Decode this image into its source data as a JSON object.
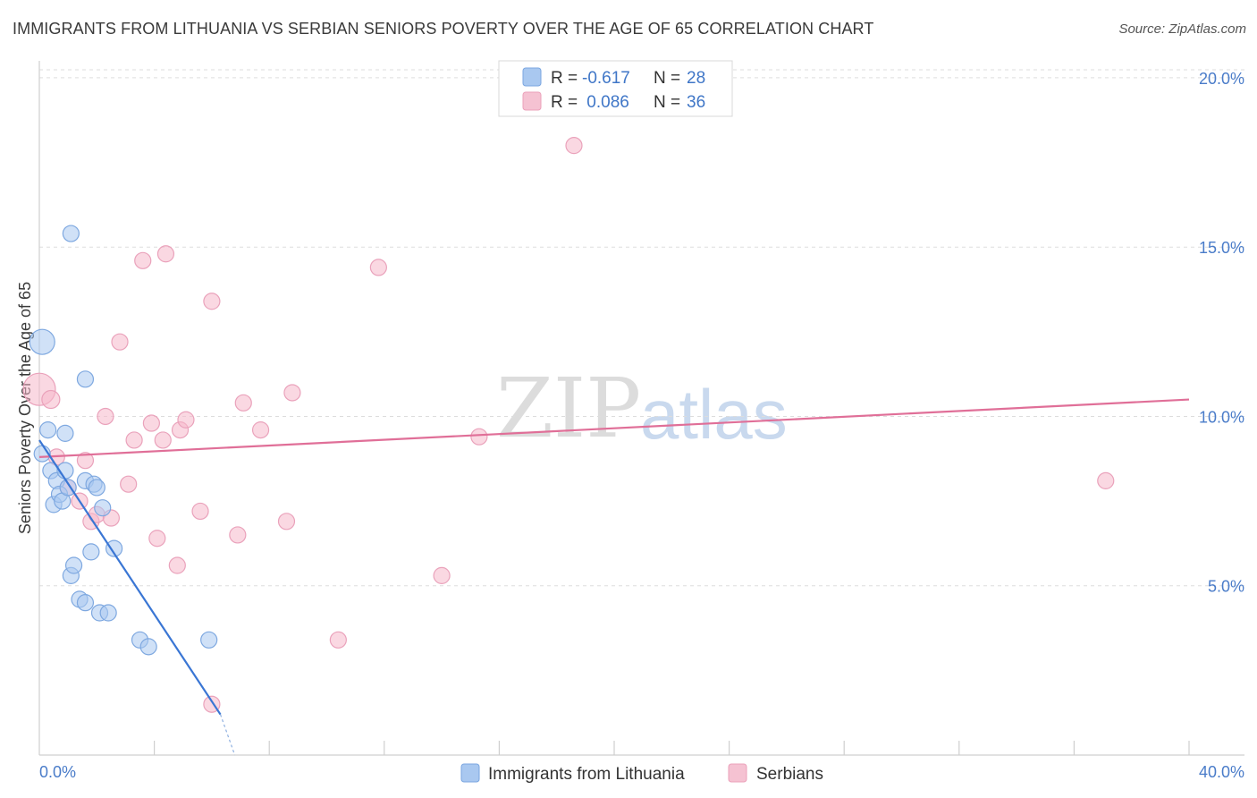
{
  "title": "IMMIGRANTS FROM LITHUANIA VS SERBIAN SENIORS POVERTY OVER THE AGE OF 65 CORRELATION CHART",
  "source": "Source: ZipAtlas.com",
  "watermark": {
    "zip": "ZIP",
    "atlas": "atlas"
  },
  "colors": {
    "blue": "#3a76d4",
    "blue_fill": "#a9c8f0",
    "pink": "#e06f98",
    "pink_fill": "#f5b8cb",
    "axis_text": "#4a7cc9"
  },
  "legend": {
    "rows": [
      {
        "r_label": "R =",
        "r_value": "-0.617",
        "n_label": "N =",
        "n_value": "28"
      },
      {
        "r_label": "R =",
        "r_value": " 0.086",
        "n_label": "N =",
        "n_value": "36"
      }
    ]
  },
  "bottom_legend": [
    "Immigrants from Lithuania",
    "Serbians"
  ],
  "chart_data": {
    "type": "scatter",
    "title": "IMMIGRANTS FROM LITHUANIA VS SERBIAN SENIORS POVERTY OVER THE AGE OF 65 CORRELATION CHART",
    "xlabel": "",
    "ylabel": "Seniors Poverty Over the Age of 65",
    "xlim": [
      0,
      40
    ],
    "ylim": [
      0,
      20.5
    ],
    "x_tick_labels": [
      "0.0%",
      "40.0%"
    ],
    "y_ticks": [
      5,
      10,
      15,
      20
    ],
    "y_tick_labels": [
      "5.0%",
      "10.0%",
      "15.0%",
      "20.0%"
    ],
    "series": [
      {
        "name": "Immigrants from Lithuania",
        "R": -0.617,
        "N": 28,
        "points": [
          [
            0.1,
            12.2,
            14
          ],
          [
            0.1,
            8.9,
            9
          ],
          [
            0.3,
            9.6,
            9
          ],
          [
            0.4,
            8.4,
            9
          ],
          [
            0.5,
            7.4,
            9
          ],
          [
            0.6,
            8.1,
            9
          ],
          [
            0.7,
            7.7,
            9
          ],
          [
            0.8,
            7.5,
            9
          ],
          [
            0.9,
            8.4,
            9
          ],
          [
            0.9,
            9.5,
            9
          ],
          [
            1.0,
            7.9,
            9
          ],
          [
            1.1,
            5.3,
            9
          ],
          [
            1.2,
            5.6,
            9
          ],
          [
            1.1,
            15.4,
            9
          ],
          [
            1.4,
            4.6,
            9
          ],
          [
            1.6,
            4.5,
            9
          ],
          [
            1.6,
            11.1,
            9
          ],
          [
            1.6,
            8.1,
            9
          ],
          [
            1.8,
            6.0,
            9
          ],
          [
            1.9,
            8.0,
            9
          ],
          [
            2.1,
            4.2,
            9
          ],
          [
            2.2,
            7.3,
            9
          ],
          [
            2.4,
            4.2,
            9
          ],
          [
            2.6,
            6.1,
            9
          ],
          [
            3.5,
            3.4,
            9
          ],
          [
            3.8,
            3.2,
            9
          ],
          [
            5.9,
            3.4,
            9
          ],
          [
            2.0,
            7.9,
            9
          ]
        ],
        "trend": {
          "x": [
            0,
            6.3
          ],
          "y": [
            9.3,
            1.2
          ],
          "dashed_x": [
            6.3,
            6.8
          ],
          "dashed_y": [
            1.2,
            0
          ]
        }
      },
      {
        "name": "Serbians",
        "R": 0.086,
        "N": 36,
        "points": [
          [
            0.0,
            10.8,
            18
          ],
          [
            0.4,
            10.5,
            10
          ],
          [
            0.6,
            8.8,
            9
          ],
          [
            1.0,
            7.9,
            9
          ],
          [
            1.4,
            7.5,
            9
          ],
          [
            1.6,
            8.7,
            9
          ],
          [
            1.8,
            6.9,
            9
          ],
          [
            2.0,
            7.1,
            9
          ],
          [
            2.3,
            10.0,
            9
          ],
          [
            2.5,
            7.0,
            9
          ],
          [
            2.8,
            12.2,
            9
          ],
          [
            3.1,
            8.0,
            9
          ],
          [
            3.3,
            9.3,
            9
          ],
          [
            3.6,
            14.6,
            9
          ],
          [
            3.9,
            9.8,
            9
          ],
          [
            4.1,
            6.4,
            9
          ],
          [
            4.3,
            9.3,
            9
          ],
          [
            4.4,
            14.8,
            9
          ],
          [
            4.8,
            5.6,
            9
          ],
          [
            4.9,
            9.6,
            9
          ],
          [
            5.1,
            9.9,
            9
          ],
          [
            5.6,
            7.2,
            9
          ],
          [
            6.0,
            13.4,
            9
          ],
          [
            6.0,
            1.5,
            9
          ],
          [
            6.9,
            6.5,
            9
          ],
          [
            7.1,
            10.4,
            9
          ],
          [
            7.7,
            9.6,
            9
          ],
          [
            8.6,
            6.9,
            9
          ],
          [
            8.8,
            10.7,
            9
          ],
          [
            10.4,
            3.4,
            9
          ],
          [
            11.8,
            14.4,
            9
          ],
          [
            14.0,
            5.3,
            9
          ],
          [
            15.3,
            9.4,
            9
          ],
          [
            18.6,
            18.0,
            9
          ],
          [
            37.1,
            8.1,
            9
          ],
          [
            7.4,
            10.4,
            1
          ]
        ],
        "trend": {
          "x": [
            0,
            40
          ],
          "y": [
            8.8,
            10.5
          ]
        }
      }
    ]
  }
}
